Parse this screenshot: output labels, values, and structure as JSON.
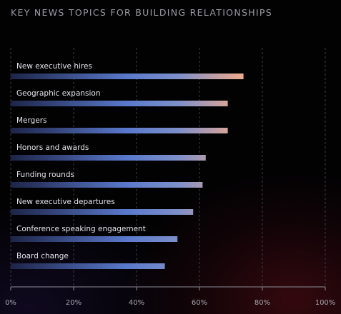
{
  "chart_data": {
    "type": "bar",
    "orientation": "horizontal",
    "title": "KEY NEWS TOPICS FOR BUILDING RELATIONSHIPS",
    "categories": [
      "New executive hires",
      "Geographic expansion",
      "Mergers",
      "Honors and awards",
      "Funding rounds",
      "New executive departures",
      "Conference speaking engagement",
      "Board change"
    ],
    "values": [
      74,
      69,
      69,
      62,
      61,
      58,
      53,
      49
    ],
    "xlim": [
      0,
      100
    ],
    "x_ticks": [
      "0%",
      "20%",
      "40%",
      "60%",
      "80%",
      "100%"
    ],
    "grid": true,
    "colors": {
      "bar_start": "#1d2447",
      "bar_mid": "#5a79cc",
      "bar_end": "#f0ab8a",
      "grid": "#3c3d48",
      "axis": "#8c8c96"
    }
  }
}
